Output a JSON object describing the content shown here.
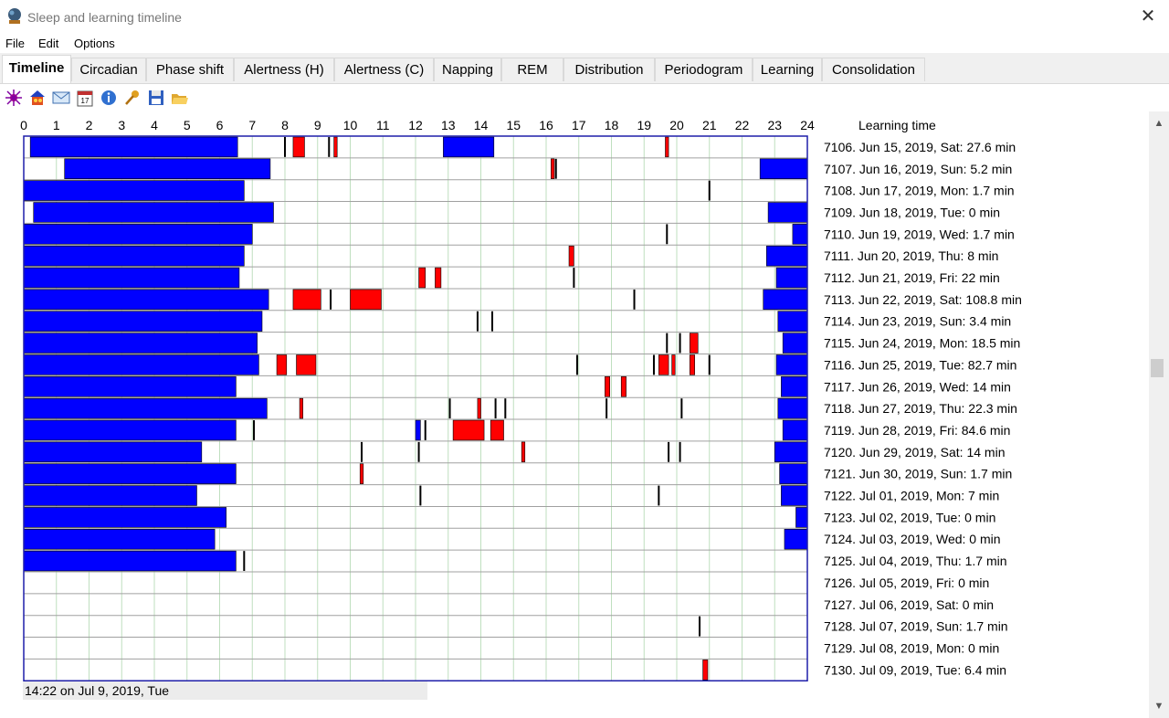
{
  "window": {
    "title": "Sleep and learning timeline",
    "close_glyph": "✕"
  },
  "menu": [
    "File",
    "Edit",
    "Options"
  ],
  "tabs": [
    "Timeline",
    "Circadian",
    "Phase shift",
    "Alertness (H)",
    "Alertness (C)",
    "Napping",
    "REM",
    "Distribution",
    "Periodogram",
    "Learning",
    "Consolidation"
  ],
  "active_tab": "Timeline",
  "toolbar_icons": [
    "colorful-star-icon",
    "home-people-icon",
    "mail-icon",
    "calendar-icon",
    "info-icon",
    "key-icon",
    "save-icon",
    "open-folder-icon"
  ],
  "calendar_day": "17",
  "colors": {
    "sleep": "#0000ff",
    "learning": "#ff0000",
    "grid": "#bfdfbf",
    "border": "#1f1faa"
  },
  "chart_data": {
    "type": "timeline",
    "hour_ticks": [
      "0",
      "1",
      "2",
      "3",
      "4",
      "5",
      "6",
      "7",
      "8",
      "9",
      "10",
      "11",
      "12",
      "13",
      "14",
      "15",
      "16",
      "17",
      "18",
      "19",
      "20",
      "21",
      "22",
      "23",
      "24"
    ],
    "header_label": "Learning time",
    "rows": [
      {
        "label": "7106. Jun 15, 2019, Sat: 27.6 min",
        "sleep": [
          [
            0.2,
            6.55
          ],
          [
            12.85,
            14.4
          ]
        ],
        "learning": [
          [
            8.25,
            8.6
          ],
          [
            9.5,
            9.6
          ],
          [
            19.65,
            19.75
          ]
        ],
        "marks": [
          8.0,
          9.35
        ]
      },
      {
        "label": "7107. Jun 16, 2019, Sun: 5.2 min",
        "sleep": [
          [
            1.25,
            7.55
          ],
          [
            22.55,
            24
          ]
        ],
        "learning": [
          [
            16.15,
            16.25
          ]
        ],
        "marks": [
          16.3
        ]
      },
      {
        "label": "7108. Jun 17, 2019, Mon: 1.7 min",
        "sleep": [
          [
            0,
            6.75
          ]
        ],
        "learning": [],
        "marks": [
          21.0
        ]
      },
      {
        "label": "7109. Jun 18, 2019, Tue: 0 min",
        "sleep": [
          [
            0.3,
            7.65
          ],
          [
            22.8,
            24
          ]
        ],
        "learning": [],
        "marks": []
      },
      {
        "label": "7110. Jun 19, 2019, Wed: 1.7 min",
        "sleep": [
          [
            0,
            7.0
          ],
          [
            23.55,
            24
          ]
        ],
        "learning": [],
        "marks": [
          19.7
        ]
      },
      {
        "label": "7111. Jun 20, 2019, Thu: 8 min",
        "sleep": [
          [
            0,
            6.75
          ],
          [
            22.75,
            24
          ]
        ],
        "learning": [
          [
            16.7,
            16.85
          ]
        ],
        "marks": []
      },
      {
        "label": "7112. Jun 21, 2019, Fri: 22 min",
        "sleep": [
          [
            0,
            6.6
          ],
          [
            23.05,
            24
          ]
        ],
        "learning": [
          [
            12.1,
            12.3
          ],
          [
            12.6,
            12.78
          ]
        ],
        "marks": [
          16.85
        ]
      },
      {
        "label": "7113. Jun 22, 2019, Sat: 108.8 min",
        "sleep": [
          [
            0,
            7.5
          ],
          [
            22.65,
            24
          ]
        ],
        "learning": [
          [
            8.25,
            9.1
          ],
          [
            10.0,
            10.95
          ]
        ],
        "marks": [
          9.4,
          18.7
        ]
      },
      {
        "label": "7114. Jun 23, 2019, Sun: 3.4 min",
        "sleep": [
          [
            0,
            7.3
          ],
          [
            23.1,
            24
          ]
        ],
        "learning": [],
        "marks": [
          13.9,
          14.35
        ]
      },
      {
        "label": "7115. Jun 24, 2019, Mon: 18.5 min",
        "sleep": [
          [
            0,
            7.15
          ],
          [
            23.25,
            24
          ]
        ],
        "learning": [
          [
            20.4,
            20.65
          ]
        ],
        "marks": [
          19.7,
          20.1
        ]
      },
      {
        "label": "7116. Jun 25, 2019, Tue: 82.7 min",
        "sleep": [
          [
            0,
            7.2
          ],
          [
            23.05,
            24
          ]
        ],
        "learning": [
          [
            7.75,
            8.05
          ],
          [
            8.35,
            8.95
          ],
          [
            19.45,
            19.75
          ],
          [
            19.85,
            19.95
          ],
          [
            20.4,
            20.55
          ]
        ],
        "marks": [
          16.95,
          19.3,
          21.0
        ]
      },
      {
        "label": "7117. Jun 26, 2019, Wed: 14 min",
        "sleep": [
          [
            0,
            6.5
          ],
          [
            23.2,
            24
          ]
        ],
        "learning": [
          [
            17.8,
            17.95
          ],
          [
            18.3,
            18.45
          ]
        ],
        "marks": []
      },
      {
        "label": "7118. Jun 27, 2019, Thu: 22.3 min",
        "sleep": [
          [
            0,
            7.45
          ],
          [
            23.1,
            24
          ]
        ],
        "learning": [
          [
            8.45,
            8.55
          ],
          [
            13.9,
            14.0
          ]
        ],
        "marks": [
          13.05,
          14.45,
          14.75,
          17.85,
          20.15
        ]
      },
      {
        "label": "7119. Jun 28, 2019, Fri: 84.6 min",
        "sleep": [
          [
            0,
            6.5
          ],
          [
            12.0,
            12.15
          ],
          [
            23.25,
            24
          ]
        ],
        "learning": [
          [
            13.15,
            14.1
          ],
          [
            14.3,
            14.7
          ]
        ],
        "marks": [
          7.05,
          12.3
        ]
      },
      {
        "label": "7120. Jun 29, 2019, Sat: 14 min",
        "sleep": [
          [
            0,
            5.45
          ],
          [
            23.0,
            24
          ]
        ],
        "learning": [
          [
            15.25,
            15.35
          ]
        ],
        "marks": [
          10.35,
          12.1,
          19.75,
          20.1
        ]
      },
      {
        "label": "7121. Jun 30, 2019, Sun: 1.7 min",
        "sleep": [
          [
            0,
            6.5
          ],
          [
            23.15,
            24
          ]
        ],
        "learning": [
          [
            10.3,
            10.4
          ]
        ],
        "marks": []
      },
      {
        "label": "7122. Jul 01, 2019, Mon: 7 min",
        "sleep": [
          [
            0,
            5.3
          ],
          [
            23.2,
            24
          ]
        ],
        "learning": [],
        "marks": [
          12.15,
          19.45
        ]
      },
      {
        "label": "7123. Jul 02, 2019, Tue: 0 min",
        "sleep": [
          [
            0,
            6.2
          ],
          [
            23.65,
            24
          ]
        ],
        "learning": [],
        "marks": []
      },
      {
        "label": "7124. Jul 03, 2019, Wed: 0 min",
        "sleep": [
          [
            0,
            5.85
          ],
          [
            23.3,
            24
          ]
        ],
        "learning": [],
        "marks": []
      },
      {
        "label": "7125. Jul 04, 2019, Thu: 1.7 min",
        "sleep": [
          [
            0,
            6.5
          ]
        ],
        "learning": [],
        "marks": [
          6.75
        ]
      },
      {
        "label": "7126. Jul 05, 2019, Fri: 0 min",
        "sleep": [],
        "learning": [],
        "marks": []
      },
      {
        "label": "7127. Jul 06, 2019, Sat: 0 min",
        "sleep": [],
        "learning": [],
        "marks": []
      },
      {
        "label": "7128. Jul 07, 2019, Sun: 1.7 min",
        "sleep": [],
        "learning": [],
        "marks": [
          20.7
        ]
      },
      {
        "label": "7129. Jul 08, 2019, Mon: 0 min",
        "sleep": [],
        "learning": [],
        "marks": []
      },
      {
        "label": "7130. Jul 09, 2019, Tue: 6.4 min",
        "sleep": [],
        "learning": [
          [
            20.8,
            20.95
          ]
        ],
        "marks": []
      }
    ]
  },
  "status": "14:22 on Jul 9, 2019, Tue"
}
